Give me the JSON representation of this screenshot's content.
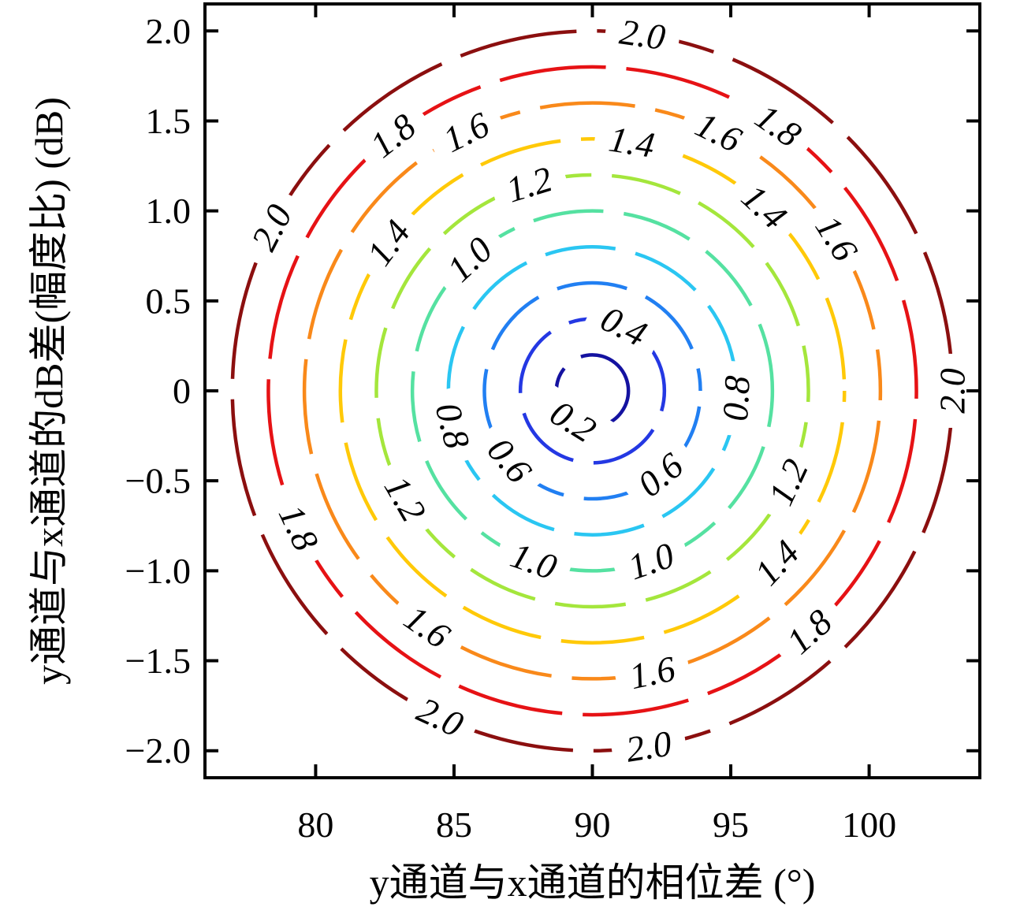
{
  "figure": {
    "background": "#ffffff",
    "frame_color": "#000000"
  },
  "chart_data": {
    "type": "contour",
    "title": "",
    "xlabel": "y通道与x通道的相位差 (°)",
    "ylabel": "y通道与x通道的dB差(幅度比) (dB)",
    "xlim": [
      76,
      104
    ],
    "ylim": [
      -2.15,
      2.15
    ],
    "grid": false,
    "tick_direction": "in",
    "tick_sides": [
      "top",
      "bottom",
      "left",
      "right"
    ],
    "xticks": {
      "values": [
        80,
        85,
        90,
        95,
        100
      ],
      "labels": [
        "80",
        "85",
        "90",
        "95",
        "100"
      ]
    },
    "yticks": {
      "values": [
        2.0,
        1.5,
        1.0,
        0.5,
        0,
        -0.5,
        -1.0,
        -1.5,
        -2.0
      ],
      "labels": [
        "2.0",
        "1.5",
        "1.0",
        "0.5",
        "0",
        "−0.5",
        "−1.0",
        "−1.5",
        "−2.0"
      ]
    },
    "center": {
      "x_deg": 90,
      "y_db": 0
    },
    "radius_scale": {
      "deg_per_level_unit": 6.51,
      "db_per_level_unit": 1.0
    },
    "line_style": "dashed",
    "contours": [
      {
        "level": "0.2",
        "value": 0.2,
        "color": "#1412A0",
        "label_angles_deg": [
          238
        ]
      },
      {
        "level": "0.4",
        "value": 0.4,
        "color": "#2438E3",
        "label_angles_deg": [
          64
        ]
      },
      {
        "level": "0.6",
        "value": 0.6,
        "color": "#217FF2",
        "label_angles_deg": [
          220,
          309
        ]
      },
      {
        "level": "0.8",
        "value": 0.8,
        "color": "#2AC6F2",
        "label_angles_deg": [
          194,
          357
        ]
      },
      {
        "level": "1.0",
        "value": 1.0,
        "color": "#55E1A1",
        "label_angles_deg": [
          133,
          251,
          289
        ]
      },
      {
        "level": "1.2",
        "value": 1.2,
        "color": "#A4E63C",
        "label_angles_deg": [
          107,
          210,
          335
        ]
      },
      {
        "level": "1.4",
        "value": 1.4,
        "color": "#FFC908",
        "label_angles_deg": [
          144,
          81,
          47,
          317
        ]
      },
      {
        "level": "1.6",
        "value": 1.6,
        "color": "#F9891A",
        "label_angles_deg": [
          116,
          64,
          32,
          235,
          282
        ]
      },
      {
        "level": "1.8",
        "value": 1.8,
        "color": "#E61215",
        "label_angles_deg": [
          128,
          55,
          205,
          312
        ]
      },
      {
        "level": "2.0",
        "value": 2.0,
        "color": "#8B0F0F",
        "label_angles_deg": [
          82,
          153,
          360,
          279,
          245
        ]
      }
    ]
  }
}
